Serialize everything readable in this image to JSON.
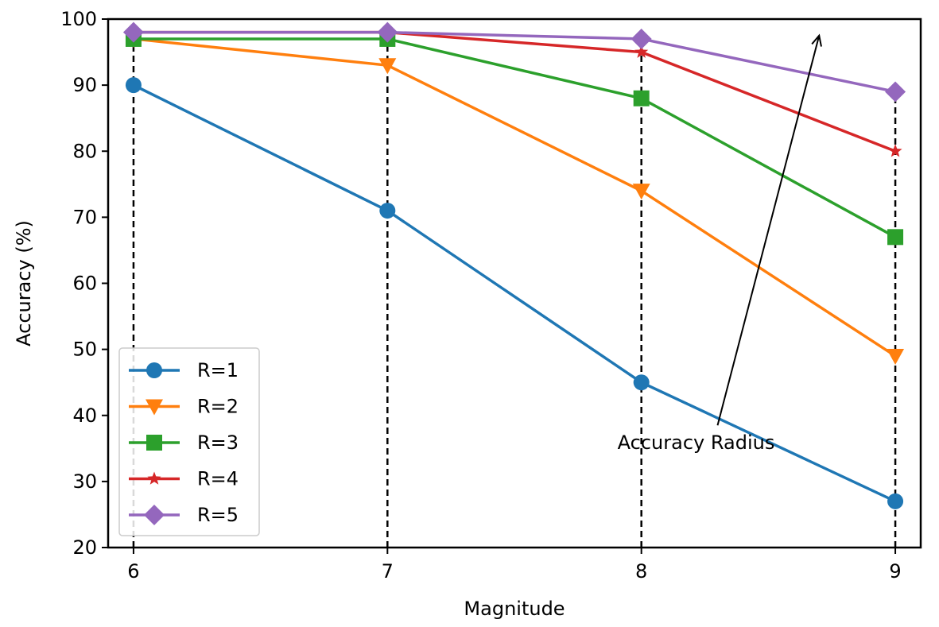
{
  "chart_data": {
    "type": "line",
    "xlabel": "Magnitude",
    "ylabel": "Accuracy (%)",
    "x": [
      6,
      7,
      8,
      9
    ],
    "xlim": [
      5.9,
      9.1
    ],
    "ylim": [
      20,
      100
    ],
    "xticks": [
      6,
      7,
      8,
      9
    ],
    "yticks": [
      20,
      30,
      40,
      50,
      60,
      70,
      80,
      90,
      100
    ],
    "grid": false,
    "vertical_guides": "dashed black lines at each x tick",
    "legend_position": "lower-left",
    "series": [
      {
        "name": "R=1",
        "marker": "circle",
        "color": "#1f77b4",
        "values": [
          90,
          71,
          45,
          27
        ]
      },
      {
        "name": "R=2",
        "marker": "triangle-down",
        "color": "#ff7f0e",
        "values": [
          97,
          93,
          74,
          49
        ]
      },
      {
        "name": "R=3",
        "marker": "square",
        "color": "#2ca02c",
        "values": [
          97,
          97,
          88,
          67
        ]
      },
      {
        "name": "R=4",
        "marker": "star",
        "color": "#d62728",
        "values": [
          98,
          98,
          95,
          80
        ]
      },
      {
        "name": "R=5",
        "marker": "diamond",
        "color": "#9467bd",
        "values": [
          98,
          98,
          97,
          89
        ]
      }
    ],
    "annotation": {
      "text": "Accuracy Radius",
      "from": [
        8.3,
        38.5
      ],
      "to": [
        8.7,
        97.5
      ]
    }
  }
}
